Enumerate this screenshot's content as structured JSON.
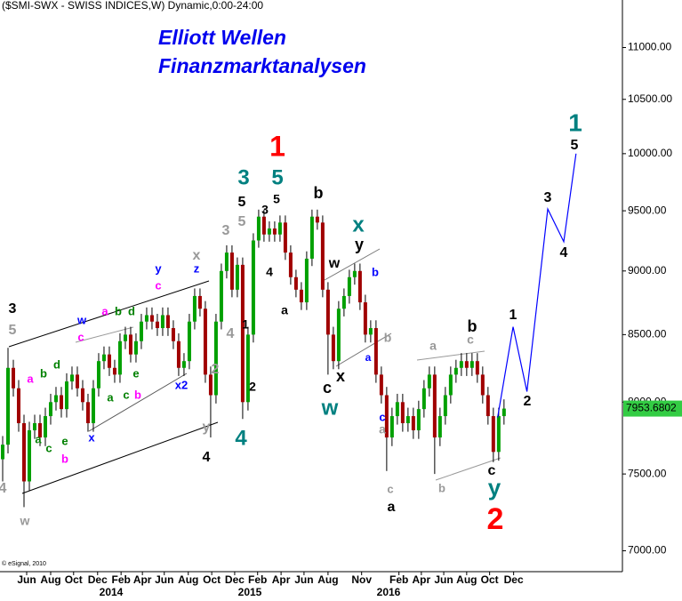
{
  "chart_data": {
    "type": "candlestick",
    "title": "($SMI-SWX - SWISS INDICES,W) Dynamic,0:00-24:00",
    "subtitle": [
      "Elliott Wellen",
      "Finanzmarktanalysen"
    ],
    "credit": "© eSignal, 2010",
    "log_scale": true,
    "up_color": "#00a000",
    "down_color": "#a00000",
    "last_color": "#33cc44",
    "open": [
      7600,
      7700,
      8250,
      8100,
      7850,
      7450,
      7800,
      7850,
      7750,
      7900,
      8000,
      8050,
      7950,
      8150,
      8200,
      8100,
      8000,
      7850,
      8100,
      8300,
      8350,
      8250,
      8200,
      8450,
      8500,
      8350,
      8450,
      8600,
      8650,
      8600,
      8550,
      8650,
      8550,
      8450,
      8250,
      8300,
      8600,
      8800,
      8700,
      8200,
      8050,
      8600,
      9000,
      9150,
      8850,
      9050,
      8000,
      8500,
      9250,
      9450,
      9300,
      9350,
      9300,
      9400,
      9150,
      8950,
      8850,
      8750,
      9100,
      9450,
      9400,
      8850,
      8500,
      8300,
      8700,
      8800,
      8950,
      9000,
      8750,
      8500,
      8550,
      8200,
      8050,
      7750,
      7900,
      8000,
      7850,
      7900,
      7800,
      7950,
      8100,
      8200,
      7750,
      7900,
      8050,
      8200,
      8250,
      8300,
      8250,
      8300,
      8200,
      8050,
      7900,
      7650,
      7900
    ],
    "high": [
      7760,
      8400,
      8310,
      8160,
      7910,
      7860,
      7910,
      7910,
      7960,
      8060,
      8110,
      8110,
      8210,
      8260,
      8260,
      8160,
      8060,
      8160,
      8360,
      8410,
      8410,
      8310,
      8510,
      8560,
      8560,
      8510,
      8660,
      8710,
      8710,
      8660,
      8710,
      8710,
      8610,
      8510,
      8360,
      8660,
      8860,
      8860,
      8760,
      8260,
      8660,
      9060,
      9210,
      9210,
      9110,
      9110,
      8560,
      9310,
      9510,
      9510,
      9410,
      9410,
      9460,
      9460,
      9210,
      9010,
      8910,
      9160,
      9510,
      9510,
      9460,
      8910,
      8560,
      8760,
      8860,
      9010,
      9060,
      9060,
      8810,
      8610,
      8610,
      8260,
      8110,
      7960,
      8060,
      8060,
      7960,
      7960,
      8010,
      8160,
      8260,
      8260,
      7960,
      8110,
      8260,
      8310,
      8360,
      8360,
      8360,
      8360,
      8260,
      8110,
      7960,
      7960,
      8020
    ],
    "low": [
      7450,
      7640,
      8040,
      7790,
      7280,
      7390,
      7740,
      7690,
      7690,
      7840,
      7940,
      7890,
      7890,
      8090,
      8040,
      7940,
      7790,
      7790,
      8040,
      8240,
      8190,
      8140,
      8140,
      8390,
      8290,
      8290,
      8390,
      8540,
      8540,
      8490,
      8490,
      8490,
      8390,
      8190,
      8190,
      8240,
      8540,
      8640,
      8140,
      7750,
      7990,
      8540,
      8940,
      8790,
      8790,
      7880,
      7940,
      8440,
      9190,
      9240,
      9240,
      9240,
      9240,
      9090,
      8890,
      8790,
      8690,
      8690,
      9040,
      9340,
      8790,
      8200,
      8240,
      8240,
      8640,
      8740,
      8890,
      8690,
      8440,
      8440,
      8140,
      7990,
      7520,
      7690,
      7840,
      7790,
      7790,
      7740,
      7740,
      7890,
      8040,
      7500,
      7690,
      7840,
      7990,
      8140,
      8190,
      8190,
      8190,
      8140,
      7990,
      7840,
      7580,
      7590,
      7840
    ],
    "close": [
      7700,
      8250,
      8100,
      7850,
      7450,
      7800,
      7850,
      7750,
      7900,
      8000,
      8050,
      7950,
      8150,
      8200,
      8100,
      8000,
      7850,
      8100,
      8300,
      8350,
      8250,
      8200,
      8450,
      8500,
      8350,
      8450,
      8600,
      8650,
      8600,
      8550,
      8650,
      8550,
      8450,
      8250,
      8300,
      8600,
      8800,
      8700,
      8200,
      8050,
      8600,
      9000,
      9150,
      8850,
      9050,
      8000,
      8500,
      9250,
      9450,
      9300,
      9350,
      9300,
      9400,
      9150,
      8950,
      8850,
      8750,
      9100,
      9450,
      9400,
      8850,
      8500,
      8300,
      8700,
      8800,
      8950,
      9000,
      8750,
      8500,
      8550,
      8200,
      8050,
      7750,
      7900,
      8000,
      7850,
      7900,
      7800,
      7950,
      8100,
      8200,
      7750,
      7900,
      8050,
      8200,
      8250,
      8300,
      8250,
      8300,
      8200,
      8050,
      7900,
      7650,
      7900,
      7953.6802
    ],
    "forecast": {
      "color": "#0000ff",
      "x": [
        92.8,
        95.7,
        98.3,
        102.2,
        105.2,
        107.5
      ],
      "values": [
        7890,
        8560,
        8076,
        9515,
        9240,
        10000
      ]
    },
    "xlim": [
      -0.5,
      116.2
    ],
    "xticks": [
      {
        "value": 4.5,
        "label": "Jun"
      },
      {
        "value": 9,
        "label": "Aug"
      },
      {
        "value": 13.3,
        "label": "Oct"
      },
      {
        "value": 17.8,
        "label": "Dec"
      },
      {
        "value": 22.2,
        "label": "Feb"
      },
      {
        "value": 26.2,
        "label": "Apr"
      },
      {
        "value": 30.3,
        "label": "Jun"
      },
      {
        "value": 34.8,
        "label": "Aug"
      },
      {
        "value": 39.2,
        "label": "Oct"
      },
      {
        "value": 43.5,
        "label": "Dec"
      },
      {
        "value": 47.8,
        "label": "Feb"
      },
      {
        "value": 52.2,
        "label": "Apr"
      },
      {
        "value": 56.5,
        "label": "Jun"
      },
      {
        "value": 61,
        "label": "Aug"
      },
      {
        "value": 67.3,
        "label": "Nov"
      },
      {
        "value": 74.3,
        "label": "Feb"
      },
      {
        "value": 78.5,
        "label": "Apr"
      },
      {
        "value": 82.7,
        "label": "Jun"
      },
      {
        "value": 87,
        "label": "Aug"
      },
      {
        "value": 91.3,
        "label": "Oct"
      },
      {
        "value": 95.8,
        "label": "Dec"
      }
    ],
    "year_labels": [
      "2014",
      "2015",
      "2016"
    ],
    "ylim": [
      6870,
      11480
    ],
    "yticks": [
      {
        "value": 7000,
        "label": "7000.00"
      },
      {
        "value": 7500,
        "label": "7500.00"
      },
      {
        "value": 8000,
        "label": "8000.00"
      },
      {
        "value": 8500,
        "label": "8500.00"
      },
      {
        "value": 9000,
        "label": "9000.00"
      },
      {
        "value": 9500,
        "label": "9500.00"
      },
      {
        "value": 10000,
        "label": "10000.00"
      },
      {
        "value": 10500,
        "label": "10500.00"
      },
      {
        "value": 11000,
        "label": "11000.00"
      }
    ],
    "annotations": [
      {
        "text": "3",
        "color": "#000000"
      },
      {
        "text": "5",
        "color": "#999999"
      },
      {
        "text": "4",
        "color": "#999999"
      },
      {
        "text": "w",
        "color": "#999999"
      },
      {
        "text": "a",
        "color": "#ff00ff"
      },
      {
        "text": "b",
        "color": "#008000"
      },
      {
        "text": "d",
        "color": "#008000"
      },
      {
        "text": "a",
        "color": "#008000"
      },
      {
        "text": "c",
        "color": "#008000"
      },
      {
        "text": "e",
        "color": "#008000"
      },
      {
        "text": "b",
        "color": "#ff00ff"
      },
      {
        "text": "w",
        "color": "#0000ff"
      },
      {
        "text": "c",
        "color": "#ff00ff"
      },
      {
        "text": "x",
        "color": "#0000ff"
      },
      {
        "text": "a",
        "color": "#ff00ff"
      },
      {
        "text": "b",
        "color": "#008000"
      },
      {
        "text": "d",
        "color": "#008000"
      },
      {
        "text": "e",
        "color": "#008000"
      },
      {
        "text": "a",
        "color": "#008000"
      },
      {
        "text": "c",
        "color": "#008000"
      },
      {
        "text": "b",
        "color": "#ff00ff"
      },
      {
        "text": "y",
        "color": "#0000ff"
      },
      {
        "text": "c",
        "color": "#ff00ff"
      },
      {
        "text": "x",
        "color": "#999999"
      },
      {
        "text": "z",
        "color": "#0000ff"
      },
      {
        "text": "x2",
        "color": "#0000ff"
      },
      {
        "text": "3",
        "color": "#999999"
      },
      {
        "text": "5",
        "color": "#999999"
      },
      {
        "text": "5",
        "color": "#000000"
      },
      {
        "text": "3",
        "color": "#008080"
      },
      {
        "text": "2",
        "color": "#999999"
      },
      {
        "text": "4",
        "color": "#999999"
      },
      {
        "text": "1",
        "color": "#000000"
      },
      {
        "text": "2",
        "color": "#000000"
      },
      {
        "text": "y",
        "color": "#999999"
      },
      {
        "text": "4",
        "color": "#000000"
      },
      {
        "text": "4",
        "color": "#008080"
      },
      {
        "text": "1",
        "color": "#ff0000"
      },
      {
        "text": "5",
        "color": "#008080"
      },
      {
        "text": "5",
        "color": "#000000"
      },
      {
        "text": "3",
        "color": "#000000"
      },
      {
        "text": "4",
        "color": "#000000"
      },
      {
        "text": "a",
        "color": "#000000"
      },
      {
        "text": "b",
        "color": "#000000"
      },
      {
        "text": "x",
        "color": "#008080"
      },
      {
        "text": "y",
        "color": "#000000"
      },
      {
        "text": "w",
        "color": "#000000"
      },
      {
        "text": "b",
        "color": "#0000ff"
      },
      {
        "text": "a",
        "color": "#0000ff"
      },
      {
        "text": "c",
        "color": "#000000"
      },
      {
        "text": "x",
        "color": "#000000"
      },
      {
        "text": "w",
        "color": "#008080"
      },
      {
        "text": "b",
        "color": "#999999"
      },
      {
        "text": "c",
        "color": "#0000ff"
      },
      {
        "text": "a",
        "color": "#999999"
      },
      {
        "text": "c",
        "color": "#999999"
      },
      {
        "text": "a",
        "color": "#000000"
      },
      {
        "text": "a",
        "color": "#999999"
      },
      {
        "text": "b",
        "color": "#000000"
      },
      {
        "text": "c",
        "color": "#999999"
      },
      {
        "text": "b",
        "color": "#999999"
      },
      {
        "text": "c",
        "color": "#000000"
      },
      {
        "text": "y",
        "color": "#008080"
      },
      {
        "text": "2",
        "color": "#ff0000"
      },
      {
        "text": "1",
        "color": "#000000"
      },
      {
        "text": "2",
        "color": "#000000"
      },
      {
        "text": "3",
        "color": "#000000"
      },
      {
        "text": "4",
        "color": "#000000"
      },
      {
        "text": "5",
        "color": "#000000"
      },
      {
        "text": "1",
        "color": "#008080"
      }
    ]
  }
}
